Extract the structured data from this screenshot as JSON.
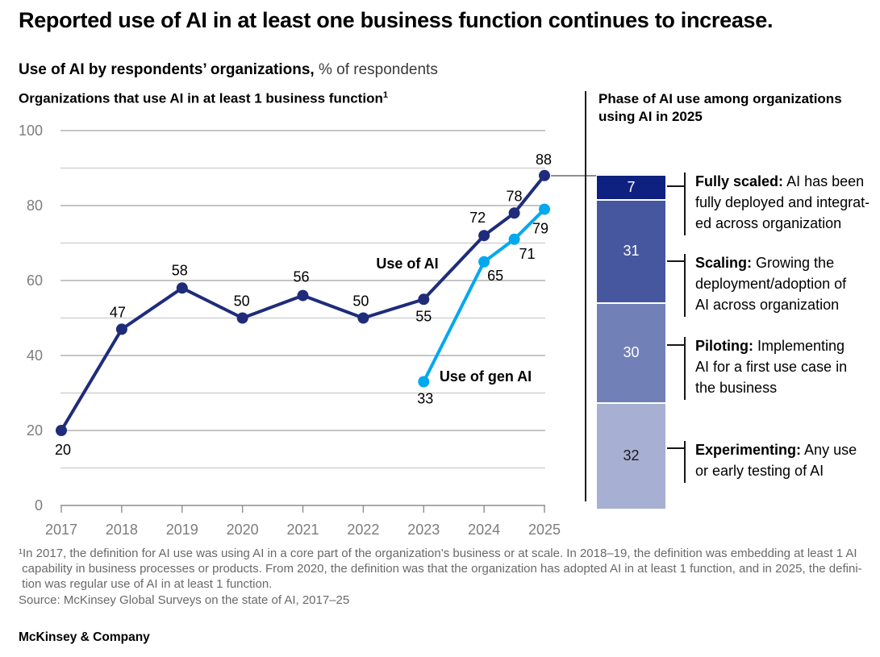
{
  "title": "Reported use of AI in at least one business function continues to increase.",
  "subtitle": {
    "bold": "Use of AI by respondents’ organizations,",
    "rest": "% of respondents"
  },
  "left_panel": {
    "heading": "Organizations that use AI in at least 1 business function",
    "heading_superscript": "1"
  },
  "right_panel": {
    "heading": "Phase of AI use among organizations\nusing AI in 2025",
    "phases": [
      {
        "lead": "Fully scaled:",
        "description": "AI has been\nfully deployed and integrat-\ned across organization"
      },
      {
        "lead": "Scaling:",
        "description": "Growing the\ndeployment/adoption of\nAI across organization"
      },
      {
        "lead": "Piloting:",
        "description": "Implementing\nAI for a first use case in\nthe business"
      },
      {
        "lead": "Experimenting:",
        "description": "Any use\nor early testing of AI"
      }
    ]
  },
  "chart_data": [
    {
      "type": "line",
      "title": "Organizations that use AI in at least 1 business function",
      "ylabel": "% of respondents",
      "ylim": [
        0,
        100
      ],
      "y_ticks": [
        0,
        20,
        40,
        60,
        80,
        100
      ],
      "x_ticks": [
        "2017",
        "2018",
        "2019",
        "2020",
        "2021",
        "2022",
        "2023",
        "2024",
        "2025"
      ],
      "grid": "horizontal, every 10 (major lines at 20s)",
      "legend_position": "inline annotations",
      "series": [
        {
          "name": "Use of AI",
          "color": "#1E2C7A",
          "points": [
            [
              2017,
              20
            ],
            [
              2018,
              47
            ],
            [
              2019,
              58
            ],
            [
              2020,
              50
            ],
            [
              2021,
              56
            ],
            [
              2022,
              50
            ],
            [
              2023,
              55
            ],
            [
              2024,
              72
            ],
            [
              2024.5,
              78
            ],
            [
              2025,
              88
            ]
          ]
        },
        {
          "name": "Use of gen AI",
          "color": "#00A8F0",
          "points": [
            [
              2023,
              33
            ],
            [
              2024,
              65
            ],
            [
              2024.5,
              71
            ],
            [
              2025,
              79
            ]
          ]
        }
      ]
    },
    {
      "type": "stacked-bar",
      "title": "Phase of AI use among organizations using AI in 2025",
      "total": 100,
      "segments": [
        {
          "label": "Fully scaled",
          "value": 7,
          "color": "#0E2180",
          "value_color": "#FFFFFF"
        },
        {
          "label": "Scaling",
          "value": 31,
          "color": "#47579F",
          "value_color": "#FFFFFF"
        },
        {
          "label": "Piloting",
          "value": 30,
          "color": "#7280B8",
          "value_color": "#FFFFFF"
        },
        {
          "label": "Experimenting",
          "value": 32,
          "color": "#1A1A1A",
          "value_color": "#1A1A1A",
          "segment_color": "#A7AFD2"
        }
      ]
    }
  ],
  "footnote": "¹In 2017, the definition for AI use was using AI in a core part of the organization’s business or at scale. In 2018–19, the definition was embedding at least 1 AI\n capability in business processes or products. From 2020, the definition was that the organization has adopted AI in at least 1 function, and in 2025, the defini-\n tion was regular use of AI in at least 1 function.",
  "source": "Source: McKinsey Global Surveys on the state of AI, 2017–25",
  "footer": "McKinsey & Company"
}
